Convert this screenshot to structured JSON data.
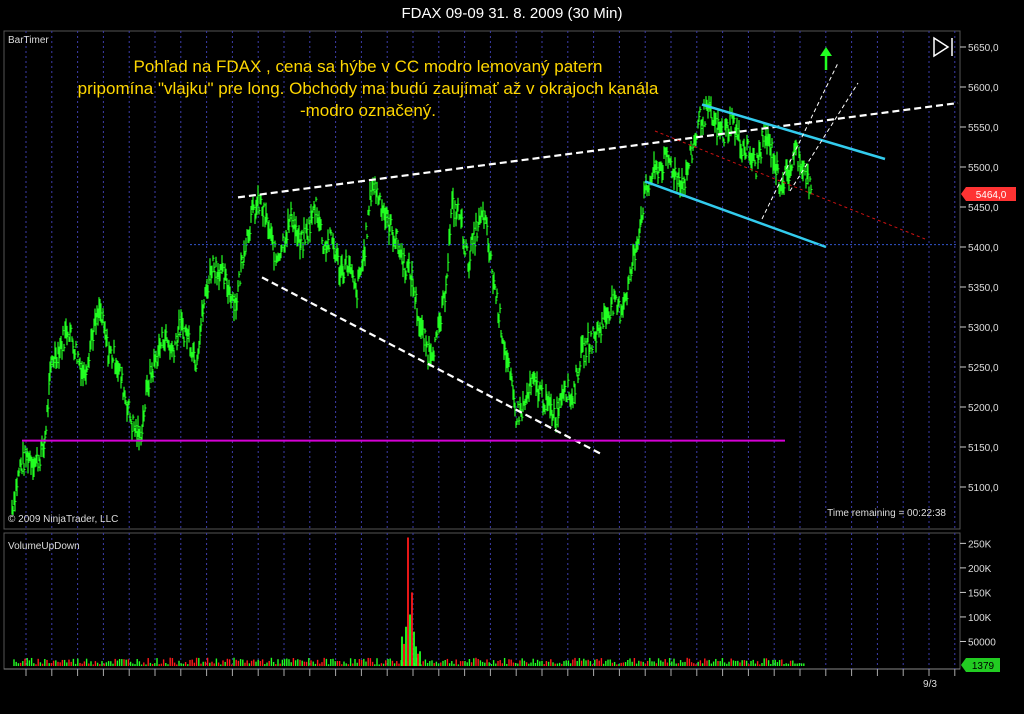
{
  "window": {
    "title": "FDAX 09-09  31. 8. 2009 (30 Min)"
  },
  "panels": {
    "price_indicator": "BarTimer",
    "copyright": "© 2009 NinjaTrader, LLC",
    "time_remaining": "Time remaining = 00:22:38",
    "volume_indicator": "VolumeUpDown",
    "price_marker": "5464,0",
    "volume_marker": "1379",
    "x_label": "9/3"
  },
  "annotation": {
    "lines": [
      "Pohľad na FDAX , cena sa hýbe v CC modro lemovaný patern",
      "pripomína \"vlajku\" pre long. Obchody ma budú zaujímať až v okrajoch kanála",
      "-modro označený."
    ]
  },
  "colors": {
    "background": "#000000",
    "price": "#22ff22",
    "up_volume": "#22ff22",
    "down_volume": "#ff1a1a",
    "support": "#d400d4",
    "channel": "#33ccee",
    "trendline": "#ffffff",
    "annotation": "#ffd700",
    "dotted_level": "#3355cc",
    "red_median": "#cc1111",
    "grid": "#3c3caa",
    "marker": "#ff3333"
  },
  "icons": {
    "play_pause": "play-pause-icon",
    "up_arrow": "green-up-arrow-icon"
  },
  "chart_data": [
    {
      "type": "line",
      "yticks": [
        "5650,0",
        "5600,0",
        "5550,0",
        "5500,0",
        "5450,0",
        "5400,0",
        "5350,0",
        "5300,0",
        "5250,0",
        "5200,0",
        "5150,0",
        "5100,0"
      ],
      "ylim": [
        5065,
        5670
      ],
      "x": [
        0,
        8,
        16,
        24,
        32,
        40,
        48,
        56,
        64,
        72,
        80,
        88,
        96,
        104,
        112,
        120,
        128,
        136,
        144,
        152,
        160,
        168,
        176,
        184,
        192,
        200,
        208,
        216,
        224,
        232,
        240,
        248,
        256,
        264,
        272,
        280,
        288,
        296,
        304,
        312,
        320,
        328,
        336,
        344,
        352,
        360,
        368,
        376,
        384,
        392,
        400,
        408,
        416,
        424,
        432,
        440,
        448,
        456,
        464,
        472,
        480,
        488,
        496,
        504,
        512,
        520,
        528,
        536,
        544,
        552,
        560,
        568,
        576,
        584,
        592,
        600,
        608,
        616,
        624,
        632,
        640,
        648,
        656,
        664,
        672,
        680,
        688,
        696,
        704,
        712,
        720,
        728,
        736,
        744,
        752,
        760,
        768,
        776,
        784,
        792,
        800
      ],
      "values": [
        5075,
        5125,
        5140,
        5130,
        5150,
        5260,
        5275,
        5300,
        5270,
        5240,
        5290,
        5320,
        5270,
        5260,
        5220,
        5180,
        5160,
        5230,
        5260,
        5290,
        5270,
        5300,
        5290,
        5260,
        5330,
        5380,
        5370,
        5350,
        5330,
        5400,
        5440,
        5455,
        5425,
        5385,
        5410,
        5440,
        5400,
        5420,
        5455,
        5400,
        5410,
        5370,
        5380,
        5340,
        5390,
        5480,
        5460,
        5430,
        5410,
        5380,
        5360,
        5300,
        5270,
        5280,
        5330,
        5450,
        5440,
        5380,
        5420,
        5440,
        5370,
        5310,
        5250,
        5190,
        5200,
        5230,
        5220,
        5200,
        5190,
        5230,
        5210,
        5260,
        5280,
        5290,
        5310,
        5330,
        5320,
        5350,
        5400,
        5460,
        5490,
        5500,
        5510,
        5490,
        5480,
        5520,
        5560,
        5570,
        5550,
        5540,
        5560,
        5530,
        5520,
        5500,
        5540,
        5520,
        5480,
        5490,
        5520,
        5500,
        5464
      ],
      "trend_lines": [
        {
          "name": "",
          "style": "dashed",
          "color": "#ffffff",
          "points": [
            [
              238,
              5462
            ],
            [
              958,
              5580
            ]
          ]
        },
        {
          "name": "",
          "style": "dashed",
          "color": "#ffffff",
          "points": [
            [
              262,
              5362
            ],
            [
              600,
              5142
            ]
          ]
        },
        {
          "name": "",
          "style": "solid",
          "color": "#33ccee",
          "points": [
            [
              702,
              5578
            ],
            [
              885,
              5510
            ]
          ]
        },
        {
          "name": "",
          "style": "solid",
          "color": "#33ccee",
          "points": [
            [
              645,
              5482
            ],
            [
              826,
              5400
            ]
          ]
        },
        {
          "name": "",
          "style": "dashed",
          "color": "#cc1111",
          "points": [
            [
              655,
              5545
            ],
            [
              925,
              5410
            ]
          ]
        },
        {
          "name": "",
          "style": "dashed",
          "color": "#ffffff",
          "points": [
            [
              762,
              5435
            ],
            [
              838,
              5630
            ]
          ]
        },
        {
          "name": "",
          "style": "dashed",
          "color": "#ffffff",
          "points": [
            [
              790,
              5470
            ],
            [
              858,
              5605
            ]
          ]
        },
        {
          "name": "",
          "style": "solid",
          "color": "#d400d4",
          "points": [
            [
              22,
              5158
            ],
            [
              785,
              5158
            ]
          ]
        },
        {
          "name": "",
          "style": "dotted",
          "color": "#3355cc",
          "points": [
            [
              190,
              5403
            ],
            [
              958,
              5403
            ]
          ]
        }
      ]
    },
    {
      "type": "bar",
      "yticks": [
        "250K",
        "200K",
        "150K",
        "100K",
        "50000"
      ],
      "ylim": [
        0,
        265000
      ],
      "spike": {
        "x": 410,
        "up": 105000,
        "down": 262000
      }
    }
  ]
}
